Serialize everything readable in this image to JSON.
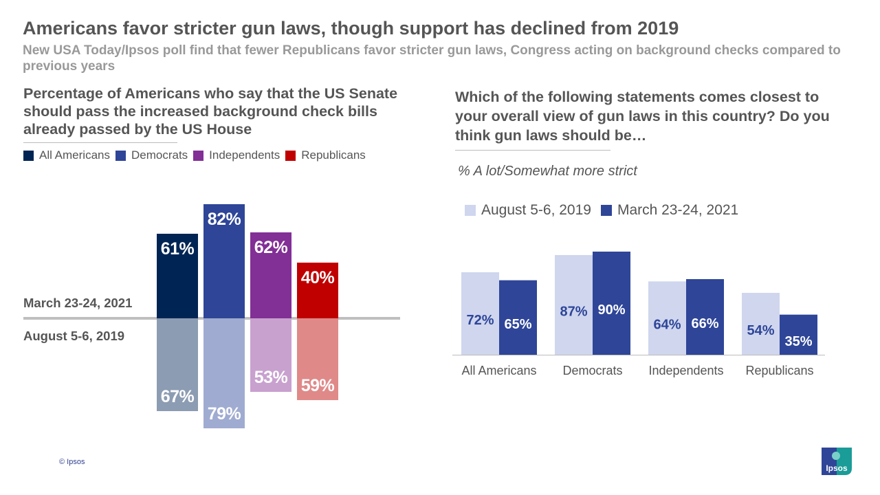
{
  "title": "Americans favor stricter gun laws, though support has declined from 2019",
  "subtitle": "New USA Today/Ipsos poll find that fewer Republicans favor stricter gun laws, Congress acting on background checks compared to previous years",
  "footer": {
    "copyright": "© Ipsos",
    "logo_text": "Ipsos"
  },
  "chart_data": [
    {
      "type": "bar",
      "title": "Percentage of Americans who say that the US Senate should pass the increased background check bills already passed by the US House",
      "categories": [
        "All Americans",
        "Democrats",
        "Independents",
        "Republicans"
      ],
      "colors_2021": [
        "#002554",
        "#2e4598",
        "#822f96",
        "#c00000"
      ],
      "colors_2019": [
        "#8c9cb2",
        "#a0abd1",
        "#c8a1cf",
        "#e08989"
      ],
      "series": [
        {
          "name": "March 23-24, 2021",
          "values": [
            61,
            82,
            62,
            40
          ]
        },
        {
          "name": "August 5-6, 2019",
          "values": [
            67,
            79,
            53,
            59
          ]
        }
      ],
      "labels": [
        "61%",
        "82%",
        "62%",
        "40%",
        "67%",
        "79%",
        "53%",
        "59%"
      ],
      "legend": "top-left"
    },
    {
      "type": "bar",
      "title": "Which of the following statements comes closest to your overall view of gun laws in this country? Do you think gun laws should be…",
      "subtitle": "% A lot/Somewhat more strict",
      "categories": [
        "All Americans",
        "Democrats",
        "Independents",
        "Republicans"
      ],
      "series": [
        {
          "name": "August 5-6, 2019",
          "color": "#cfd6ee",
          "values": [
            72,
            87,
            64,
            54
          ]
        },
        {
          "name": "March 23-24, 2021",
          "color": "#2e4598",
          "values": [
            65,
            90,
            66,
            35
          ]
        }
      ],
      "legend": "top-left"
    }
  ]
}
